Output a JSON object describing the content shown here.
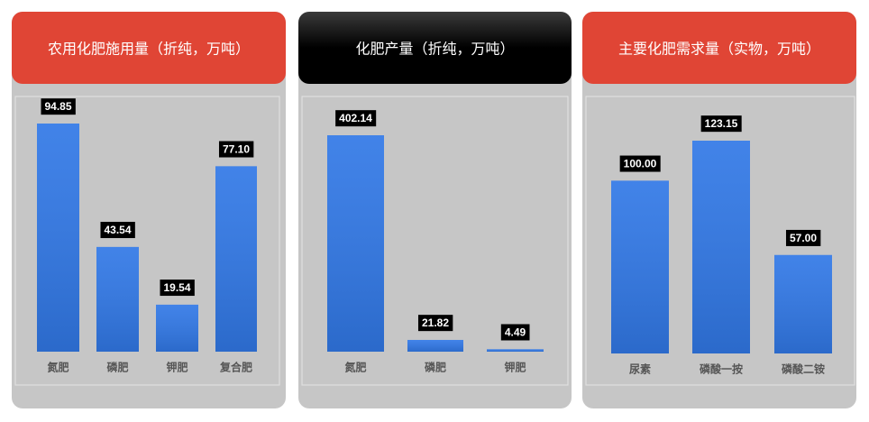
{
  "chart_data": [
    {
      "type": "bar",
      "title": "农用化肥施用量（折纯，万吨）",
      "categories": [
        "氮肥",
        "磷肥",
        "钾肥",
        "复合肥"
      ],
      "values": [
        94.85,
        43.54,
        19.54,
        77.1
      ],
      "value_labels": [
        "94.85",
        "43.54",
        "19.54",
        "77.10"
      ],
      "color": "#3178e6"
    },
    {
      "type": "bar",
      "title": "化肥产量（折纯，万吨）",
      "categories": [
        "氮肥",
        "磷肥",
        "钾肥"
      ],
      "values": [
        402.14,
        21.82,
        4.49
      ],
      "value_labels": [
        "402.14",
        "21.82",
        "4.49"
      ],
      "color": "#3178e6"
    },
    {
      "type": "bar",
      "title": "主要化肥需求量（实物，万吨）",
      "categories": [
        "尿素",
        "磷酸一按",
        "磷酸二铵"
      ],
      "values": [
        100,
        123.15,
        57
      ],
      "value_labels": [
        "100.00",
        "123.15",
        "57.00"
      ],
      "color": "#3178e6"
    }
  ]
}
